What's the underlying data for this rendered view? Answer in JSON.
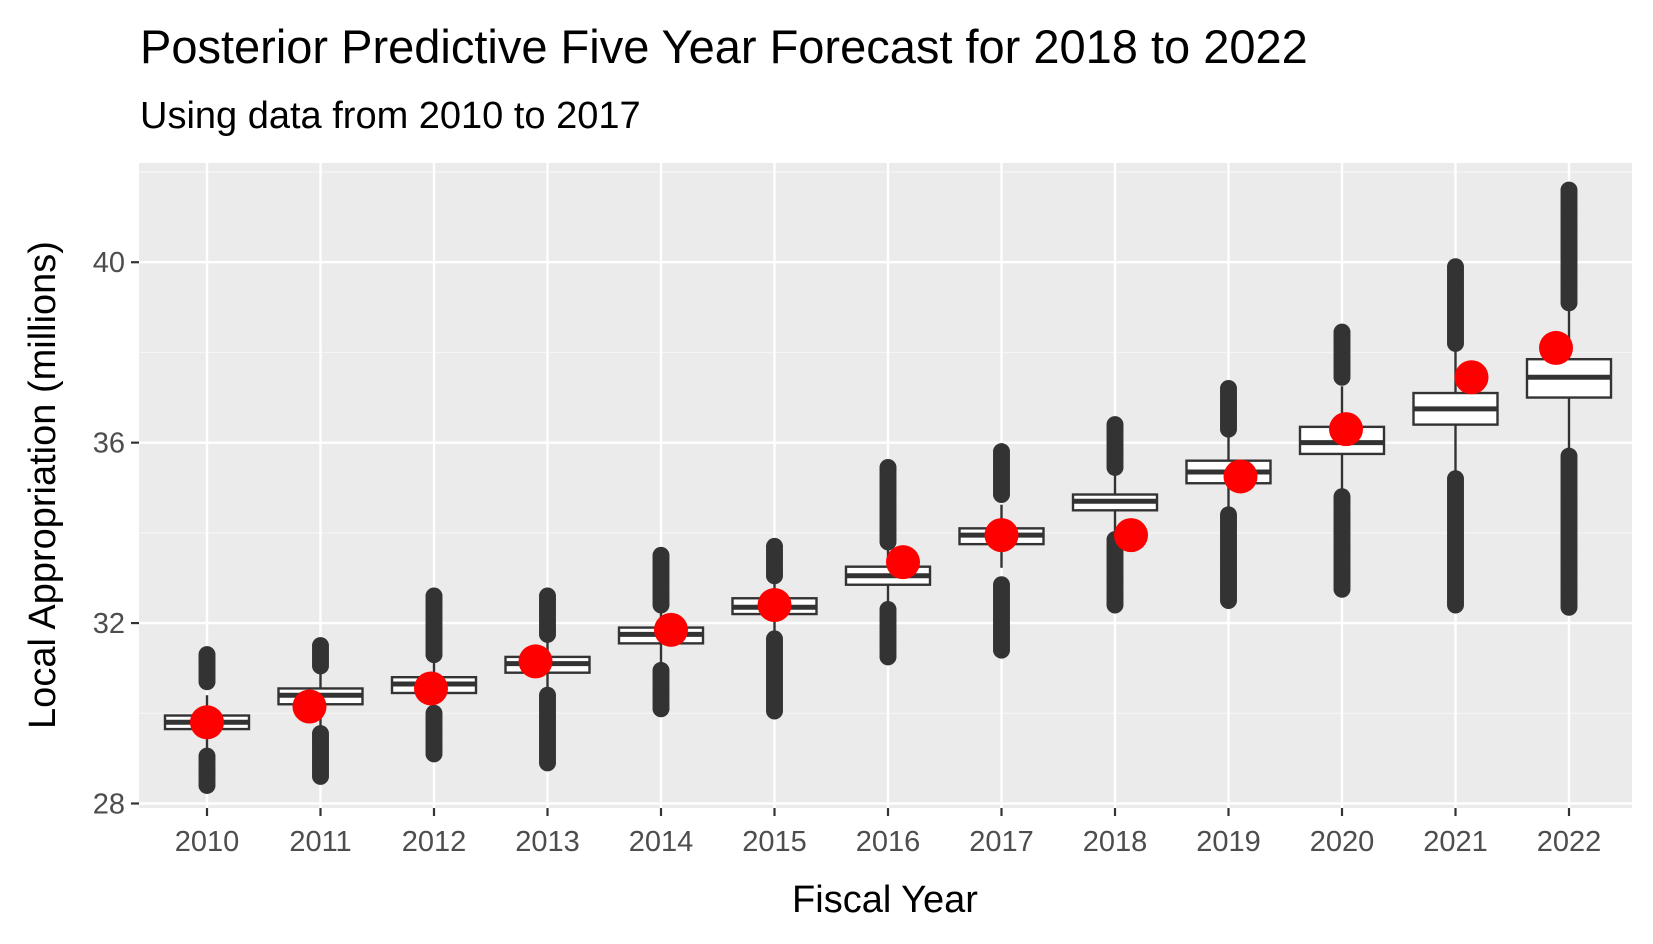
{
  "colors": {
    "panel": "#ebebeb",
    "grid_major": "#ffffff",
    "grid_minor": "#f5f5f5",
    "box": "#333333",
    "box_fill": "#ffffff",
    "point": "#ff0000",
    "tick": "#333333"
  },
  "chart_data": {
    "type": "boxplot",
    "title": "Posterior Predictive Five Year Forecast for 2018 to 2022",
    "subtitle": "Using data from 2010 to 2017",
    "xlabel": "Fiscal Year",
    "ylabel": "Local Appropriation (millions)",
    "ylim": [
      27.9,
      42.2
    ],
    "yticks": [
      28,
      32,
      36,
      40
    ],
    "ytick_labels": [
      "28",
      "32",
      "36",
      "40"
    ],
    "categories": [
      "2010",
      "2011",
      "2012",
      "2013",
      "2014",
      "2015",
      "2016",
      "2017",
      "2018",
      "2019",
      "2020",
      "2021",
      "2022"
    ],
    "boxes": [
      {
        "q1": 29.65,
        "median": 29.8,
        "q3": 29.95,
        "outliers_low": [
          28.4,
          29.05
        ],
        "outliers_high": [
          30.7,
          31.3
        ]
      },
      {
        "q1": 30.2,
        "median": 30.4,
        "q3": 30.55,
        "outliers_low": [
          28.6,
          29.55
        ],
        "outliers_high": [
          31.05,
          31.5
        ]
      },
      {
        "q1": 30.45,
        "median": 30.65,
        "q3": 30.8,
        "outliers_low": [
          29.1,
          30.0
        ],
        "outliers_high": [
          31.3,
          32.6
        ]
      },
      {
        "q1": 30.9,
        "median": 31.1,
        "q3": 31.25,
        "outliers_low": [
          28.9,
          30.4
        ],
        "outliers_high": [
          31.75,
          32.6
        ]
      },
      {
        "q1": 31.55,
        "median": 31.75,
        "q3": 31.9,
        "outliers_low": [
          30.1,
          30.95
        ],
        "outliers_high": [
          32.4,
          33.5
        ]
      },
      {
        "q1": 32.2,
        "median": 32.35,
        "q3": 32.55,
        "outliers_low": [
          30.05,
          31.65
        ],
        "outliers_high": [
          33.05,
          33.7
        ]
      },
      {
        "q1": 32.85,
        "median": 33.05,
        "q3": 33.25,
        "outliers_low": [
          31.25,
          32.3
        ],
        "outliers_high": [
          33.8,
          35.45
        ]
      },
      {
        "q1": 33.75,
        "median": 33.95,
        "q3": 34.1,
        "outliers_low": [
          31.4,
          32.85
        ],
        "outliers_high": [
          34.85,
          35.8
        ]
      },
      {
        "q1": 34.5,
        "median": 34.7,
        "q3": 34.85,
        "outliers_low": [
          32.4,
          33.85
        ],
        "outliers_high": [
          35.45,
          36.4
        ]
      },
      {
        "q1": 35.1,
        "median": 35.35,
        "q3": 35.6,
        "outliers_low": [
          32.5,
          34.4
        ],
        "outliers_high": [
          36.3,
          37.2
        ]
      },
      {
        "q1": 35.75,
        "median": 36.0,
        "q3": 36.35,
        "outliers_low": [
          32.75,
          34.8
        ],
        "outliers_high": [
          37.45,
          38.45
        ]
      },
      {
        "q1": 36.4,
        "median": 36.75,
        "q3": 37.1,
        "outliers_low": [
          32.4,
          35.2
        ],
        "outliers_high": [
          38.2,
          39.9
        ]
      },
      {
        "q1": 37.0,
        "median": 37.45,
        "q3": 37.85,
        "outliers_low": [
          32.35,
          35.7
        ],
        "outliers_high": [
          39.1,
          41.6
        ]
      }
    ],
    "actual_points": [
      {
        "year": "2010",
        "value": 29.8
      },
      {
        "year": "2011",
        "value": 30.15
      },
      {
        "year": "2012",
        "value": 30.55
      },
      {
        "year": "2013",
        "value": 31.15
      },
      {
        "year": "2014",
        "value": 31.85
      },
      {
        "year": "2015",
        "value": 32.4
      },
      {
        "year": "2016",
        "value": 33.35
      },
      {
        "year": "2017",
        "value": 33.95
      },
      {
        "year": "2018",
        "value": 33.95
      },
      {
        "year": "2019",
        "value": 35.25
      },
      {
        "year": "2020",
        "value": 36.3
      },
      {
        "year": "2021",
        "value": 37.45
      },
      {
        "year": "2022",
        "value": 38.1
      }
    ]
  }
}
